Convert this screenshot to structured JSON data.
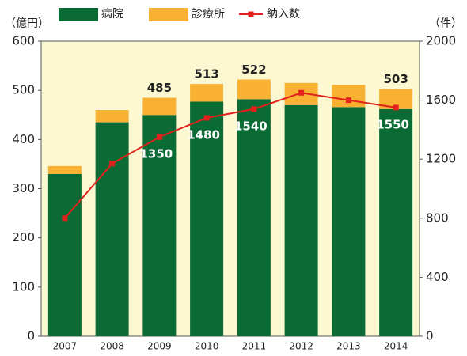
{
  "chart_data": {
    "type": "bar-line",
    "y_unit": "（億円）",
    "y2_unit": "（件）",
    "categories": [
      "2007",
      "2008",
      "2009",
      "2010",
      "2011",
      "2012",
      "2013",
      "2014"
    ],
    "series": [
      {
        "name": "病院",
        "color": "#0b6b35",
        "values": [
          330,
          435,
          450,
          477,
          482,
          470,
          466,
          462
        ]
      },
      {
        "name": "診療所",
        "color": "#f8b133",
        "values": [
          16,
          25,
          35,
          36,
          40,
          45,
          45,
          41
        ]
      },
      {
        "name": "納入数",
        "color": "#e3211c",
        "axis": "y2",
        "values": [
          800,
          1170,
          1350,
          1480,
          1540,
          1650,
          1600,
          1550
        ]
      }
    ],
    "total_labels": [
      null,
      null,
      485,
      513,
      522,
      null,
      null,
      503
    ],
    "line_labels": [
      null,
      null,
      1350,
      1480,
      1540,
      null,
      null,
      1550
    ],
    "ylim": [
      0,
      600
    ],
    "yticks": [
      0,
      100,
      200,
      300,
      400,
      500,
      600
    ],
    "y2lim": [
      0,
      2000
    ],
    "y2ticks": [
      0,
      400,
      800,
      1200,
      1600,
      2000
    ]
  }
}
